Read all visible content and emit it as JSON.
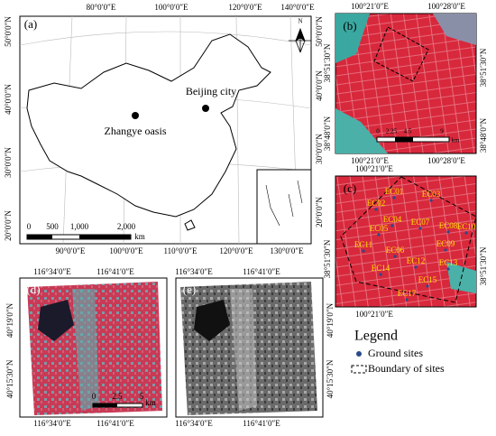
{
  "panel_a": {
    "label": "(a)",
    "top_lon": [
      "80°0′0″E",
      "100°0′0″E",
      "120°0′0″E",
      "140°0′0″E"
    ],
    "bottom_lon": [
      "90°0′0″E",
      "100°0′0″E",
      "110°0′0″E",
      "120°0′0″E",
      "130°0′0″E"
    ],
    "left_lat": [
      "50°0′0″N",
      "40°0′0″N",
      "30°0′0″N",
      "20°0′0″N"
    ],
    "right_lat": [
      "50°0′0″N",
      "40°0′0″N",
      "30°0′0″N",
      "20°0′0″N"
    ],
    "places": [
      "Beijing city",
      "Zhangye oasis"
    ],
    "scale": [
      "0",
      "500",
      "1,000",
      "2,000",
      "km"
    ],
    "north": "N"
  },
  "panel_b": {
    "label": "(b)",
    "top_lon": [
      "100°21′0″E",
      "100°28′0″E"
    ],
    "bottom_lon": [
      "100°21′0″E",
      "100°28′0″E"
    ],
    "left_lat": [
      "38°51′30″N",
      "38°48′0″N"
    ],
    "right_lat": [
      "38°51′30″N",
      "38°48′0″N"
    ],
    "scale": [
      "0",
      "2.25",
      "4.5",
      "9",
      "km"
    ]
  },
  "panel_c": {
    "label": "(c)",
    "top_lon": [
      "100°21′0″E"
    ],
    "bottom_lon": [
      "100°21′0″E"
    ],
    "left_lat": [
      "38°51′30″N"
    ],
    "right_lat": [
      "38°51′30″N"
    ],
    "sites": [
      "EC01",
      "EC03",
      "EC02",
      "EC04",
      "EC07",
      "EC05",
      "EC08",
      "EC10",
      "EC11",
      "EC06",
      "EC09",
      "EC12",
      "EC13",
      "EC14",
      "EC15",
      "EC17"
    ]
  },
  "panel_d": {
    "label": "(d)",
    "top_lon": [
      "116°34′0″E",
      "116°41′0″E"
    ],
    "bottom_lon": [
      "116°34′0″E",
      "116°41′0″E"
    ],
    "left_lat": [
      "40°19′0″N",
      "40°15′30″N"
    ],
    "scale": [
      "0",
      "2.5",
      "5",
      "km"
    ]
  },
  "panel_e": {
    "label": "(e)",
    "top_lon": [
      "116°34′0″E",
      "116°41′0″E"
    ],
    "bottom_lon": [
      "116°34′0″E",
      "116°41′0″E"
    ],
    "right_lat": [
      "40°19′0″N",
      "40°15′30″N"
    ]
  },
  "legend": {
    "title": "Legend",
    "items": [
      "Ground sites",
      "Boundary of sites"
    ]
  }
}
